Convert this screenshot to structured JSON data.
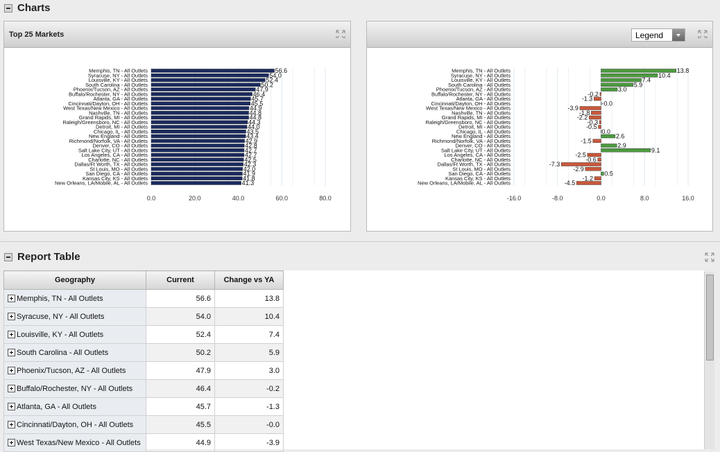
{
  "charts_section": "Charts",
  "report_section": "Report Table",
  "legend_dropdown": "Legend",
  "chart_data": [
    {
      "type": "hbar",
      "title": "Top 25 Markets",
      "categories": [
        "Memphis, TN - All Outlets",
        "Syracuse, NY - All Outlets",
        "Louisville, KY - All Outlets",
        "South Carolina - All Outlets",
        "Phoenix/Tucson, AZ - All Outlets",
        "Buffalo/Rochester, NY - All Outlets",
        "Atlanta, GA - All Outlets",
        "Cincinnati/Dayton, OH - All Outlets",
        "West Texas/New Mexico - All Outlets",
        "Nashville, TN - All Outlets",
        "Grand Rapids, MI - All Outlets",
        "Raleigh/Greensboro, NC - All Outlets",
        "Detroit, MI - All Outlets",
        "Chicago, IL - All Outlets",
        "New England - All Outlets",
        "Richmond/Norfolk, VA - All Outlets",
        "Denver, CO - All Outlets",
        "Salt Lake City, UT - All Outlets",
        "Los Angeles, CA - All Outlets",
        "Charlotte, NC - All Outlets",
        "Dallas/Ft Worth, TX - All Outlets",
        "St Louis, MO - All Outlets",
        "San Diego, CA - All Outlets",
        "Kansas City, KS - All Outlets",
        "New Orleans, LA/Mobile, AL - All Outlets"
      ],
      "values": [
        56.6,
        54.0,
        52.4,
        50.2,
        47.9,
        46.4,
        45.7,
        45.5,
        44.9,
        44.8,
        44.8,
        44.3,
        44.0,
        43.5,
        43.4,
        42.9,
        42.8,
        42.7,
        42.7,
        42.5,
        42.3,
        42.0,
        41.9,
        41.8,
        41.3
      ],
      "value_labels": [
        "56.6",
        "54.0",
        "52.4",
        "50.2",
        "47.9",
        "46.4",
        "45.7",
        "45.5",
        "44.9",
        "44.8",
        "44.8",
        "44.3",
        "44.0",
        "43.5",
        "43.4",
        "42.9",
        "42.8",
        "42.7",
        "42.7",
        "42.5",
        "42.3",
        "42.0",
        "41.9",
        "41.8",
        "41.3"
      ],
      "color": "#1b2b5f",
      "xlim": [
        0,
        80
      ],
      "xticks": [
        {
          "value": 0,
          "label": "0.0"
        },
        {
          "value": 20,
          "label": "20.0"
        },
        {
          "value": 40,
          "label": "40.0"
        },
        {
          "value": 60,
          "label": "60.0"
        },
        {
          "value": 80,
          "label": "80.0"
        }
      ],
      "grid": true
    },
    {
      "type": "hbar",
      "categories": [
        "Memphis, TN - All Outlets",
        "Syracuse, NY - All Outlets",
        "Louisville, KY - All Outlets",
        "South Carolina - All Outlets",
        "Phoenix/Tucson, AZ - All Outlets",
        "Buffalo/Rochester, NY - All Outlets",
        "Atlanta, GA - All Outlets",
        "Cincinnati/Dayton, OH - All Outlets",
        "West Texas/New Mexico - All Outlets",
        "Nashville, TN - All Outlets",
        "Grand Rapids, MI - All Outlets",
        "Raleigh/Greensboro, NC - All Outlets",
        "Detroit, MI - All Outlets",
        "Chicago, IL - All Outlets",
        "New England - All Outlets",
        "Richmond/Norfolk, VA - All Outlets",
        "Denver, CO - All Outlets",
        "Salt Lake City, UT - All Outlets",
        "Los Angeles, CA - All Outlets",
        "Charlotte, NC - All Outlets",
        "Dallas/Ft Worth, TX - All Outlets",
        "St Louis, MO - All Outlets",
        "San Diego, CA - All Outlets",
        "Kansas City, KS - All Outlets",
        "New Orleans, LA/Mobile, AL - All Outlets"
      ],
      "values": [
        13.8,
        10.4,
        7.4,
        5.9,
        3.0,
        -0.2,
        -1.3,
        0,
        -3.9,
        -1.8,
        -2.2,
        -0.3,
        -0.5,
        0.0,
        2.6,
        -1.5,
        2.9,
        9.1,
        -2.5,
        -0.6,
        -7.3,
        -2.9,
        0.5,
        -1.2,
        -4.5
      ],
      "value_labels": [
        "13.8",
        "10.4",
        "7.4",
        "5.9",
        "3.0",
        "-0.2",
        "-1.3",
        "-0.0",
        "-3.9",
        "-1.8",
        "-2.2",
        "-0.3",
        "-0.5",
        "0.0",
        "2.6",
        "-1.5",
        "2.9",
        "9.1",
        "-2.5",
        "-0.6",
        "-7.3",
        "-2.9",
        "0.5",
        "-1.2",
        "-4.5"
      ],
      "positive_color": "#4e9a41",
      "negative_color": "#c8583b",
      "xlim": [
        -16,
        16
      ],
      "xticks": [
        {
          "value": -16,
          "label": "-16.0"
        },
        {
          "value": -8,
          "label": "-8.0"
        },
        {
          "value": 0,
          "label": "0.0"
        },
        {
          "value": 8,
          "label": "8.0"
        },
        {
          "value": 16,
          "label": "16.0"
        }
      ],
      "grid": true
    }
  ],
  "table": {
    "columns": [
      "Geography",
      "Current",
      "Change vs YA"
    ],
    "rows": [
      [
        "Memphis, TN - All Outlets",
        "56.6",
        "13.8"
      ],
      [
        "Syracuse, NY - All Outlets",
        "54.0",
        "10.4"
      ],
      [
        "Louisville, KY - All Outlets",
        "52.4",
        "7.4"
      ],
      [
        "South Carolina - All Outlets",
        "50.2",
        "5.9"
      ],
      [
        "Phoenix/Tucson, AZ - All Outlets",
        "47.9",
        "3.0"
      ],
      [
        "Buffalo/Rochester, NY - All Outlets",
        "46.4",
        "-0.2"
      ],
      [
        "Atlanta, GA - All Outlets",
        "45.7",
        "-1.3"
      ],
      [
        "Cincinnati/Dayton, OH - All Outlets",
        "45.5",
        "-0.0"
      ],
      [
        "West Texas/New Mexico - All Outlets",
        "44.9",
        "-3.9"
      ]
    ]
  }
}
